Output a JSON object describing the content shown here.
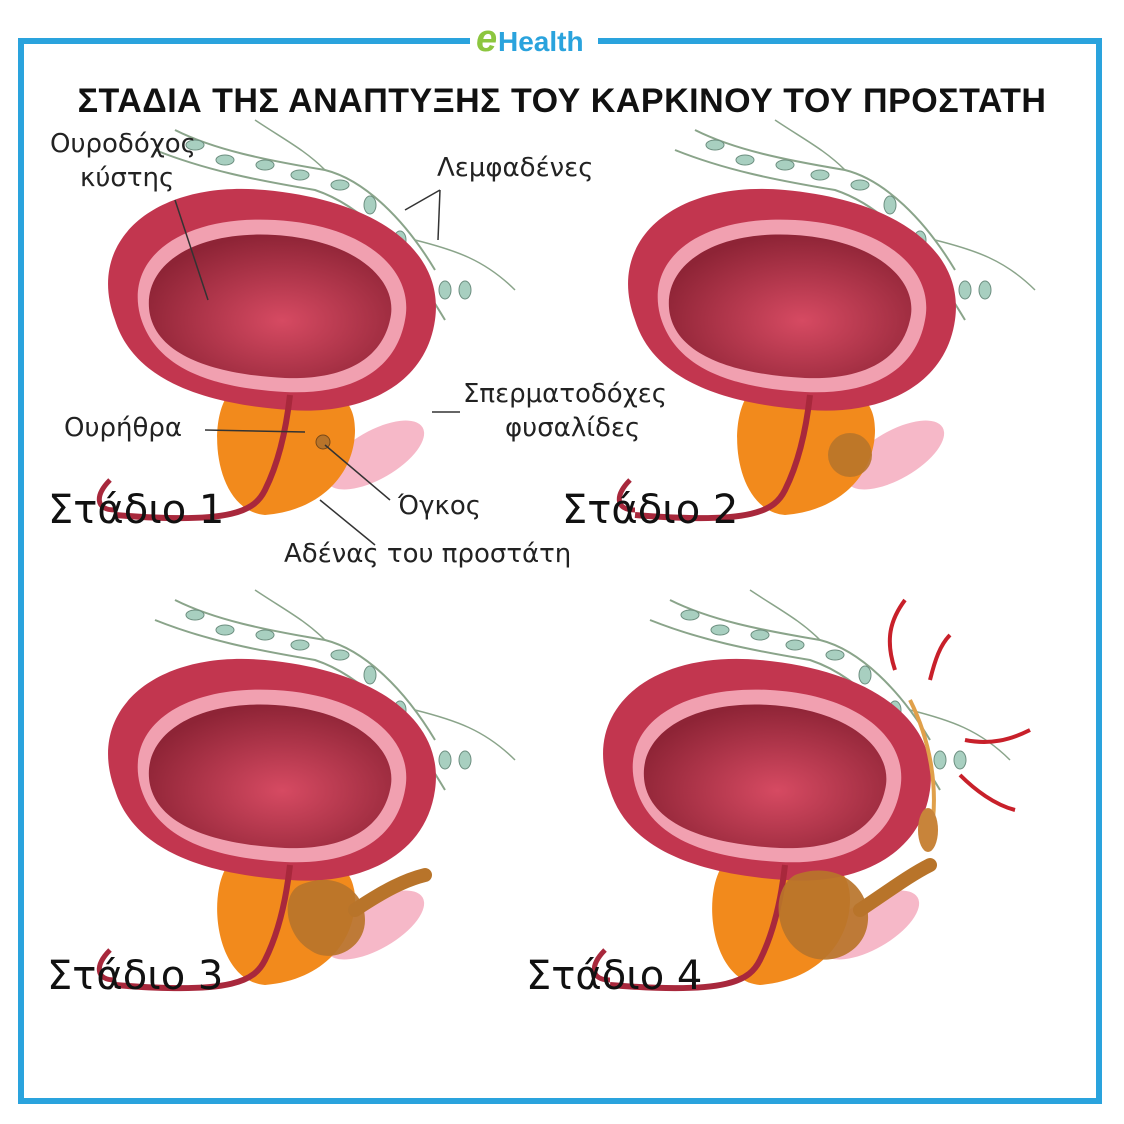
{
  "logo": {
    "e": "e",
    "health": "Health"
  },
  "title": "ΣΤΑΔΙΑ ΤΗΣ ΑΝΑΠΤΥΞΗΣ ΤΟΥ ΚΑΡΚΙΝΟΥ ΤΟΥ ΠΡΟΣΤΑΤΗ",
  "labels": {
    "bladder": [
      "Ουροδόχος",
      "κύστης"
    ],
    "lymph_nodes": "Λεμφαδένες",
    "seminal_vesicles": [
      "Σπερματοδόχες",
      "φυσαλίδες"
    ],
    "urethra": "Ουρήθρα",
    "tumor": "Όγκος",
    "prostate_gland": "Αδένας του προστάτη"
  },
  "stages": [
    "Στάδιο 1",
    "Στάδιο 2",
    "Στάδιο 3",
    "Στάδιο 4"
  ],
  "colors": {
    "frame": "#2aa3dd",
    "bladder_outer": "#c2364f",
    "bladder_inner": "#9e2a3c",
    "prostate": "#f28a1c",
    "tumor": "#b8742a",
    "lymph": "#a8cfc0",
    "vesicle": "#f6b8c8",
    "arrow": "#c8202a"
  }
}
